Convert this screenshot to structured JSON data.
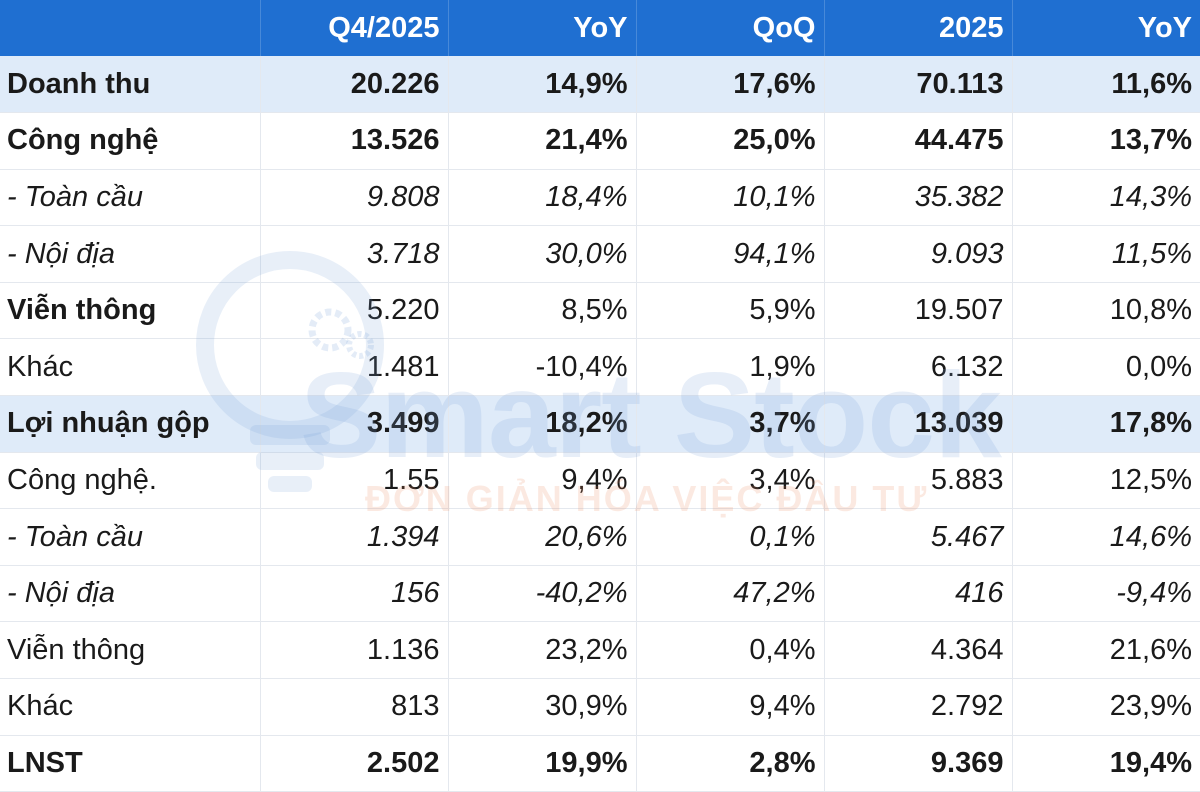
{
  "header": [
    "",
    "Q4/2025",
    "YoY",
    "QoQ",
    "2025",
    "YoY"
  ],
  "rows": [
    {
      "style": "hl bold",
      "cells": [
        "Doanh thu",
        "20.226",
        "14,9%",
        "17,6%",
        "70.113",
        "11,6%"
      ]
    },
    {
      "style": "bold",
      "cells": [
        "Công nghệ",
        "13.526",
        "21,4%",
        "25,0%",
        "44.475",
        "13,7%"
      ]
    },
    {
      "style": "italic",
      "cells": [
        "- Toàn cầu",
        "9.808",
        "18,4%",
        "10,1%",
        "35.382",
        "14,3%"
      ]
    },
    {
      "style": "italic",
      "cells": [
        "- Nội địa",
        "3.718",
        "30,0%",
        "94,1%",
        "9.093",
        "11,5%"
      ]
    },
    {
      "style": "boldlabel",
      "cells": [
        "Viễn thông",
        "5.220",
        "8,5%",
        "5,9%",
        "19.507",
        "10,8%"
      ]
    },
    {
      "style": "",
      "cells": [
        "Khác",
        "1.481",
        "-10,4%",
        "1,9%",
        "6.132",
        "0,0%"
      ]
    },
    {
      "style": "hl bold",
      "cells": [
        "Lợi nhuận gộp",
        "3.499",
        "18,2%",
        "3,7%",
        "13.039",
        "17,8%"
      ]
    },
    {
      "style": "",
      "cells": [
        "Công nghệ.",
        "1.55",
        "9,4%",
        "3,4%",
        "5.883",
        "12,5%"
      ]
    },
    {
      "style": "italic",
      "cells": [
        "- Toàn cầu",
        "1.394",
        "20,6%",
        "0,1%",
        "5.467",
        "14,6%"
      ]
    },
    {
      "style": "italic",
      "cells": [
        "- Nội địa",
        "156",
        "-40,2%",
        "47,2%",
        "416",
        "-9,4%"
      ]
    },
    {
      "style": "",
      "cells": [
        "Viễn thông",
        "1.136",
        "23,2%",
        "0,4%",
        "4.364",
        "21,6%"
      ]
    },
    {
      "style": "",
      "cells": [
        "Khác",
        "813",
        "30,9%",
        "9,4%",
        "2.792",
        "23,9%"
      ]
    },
    {
      "style": "bold",
      "cells": [
        "LNST",
        "2.502",
        "19,9%",
        "2,8%",
        "9.369",
        "19,4%"
      ]
    }
  ],
  "watermark": {
    "brand": "Smart Stock",
    "slogan": "ĐƠN GIẢN HÓA VIỆC ĐẦU TƯ",
    "brand_color": "#78a0d7",
    "slogan_color": "#eb875a"
  },
  "colors": {
    "header_bg": "#1f6fd1",
    "highlight_row_bg": "#dbe8f8"
  }
}
